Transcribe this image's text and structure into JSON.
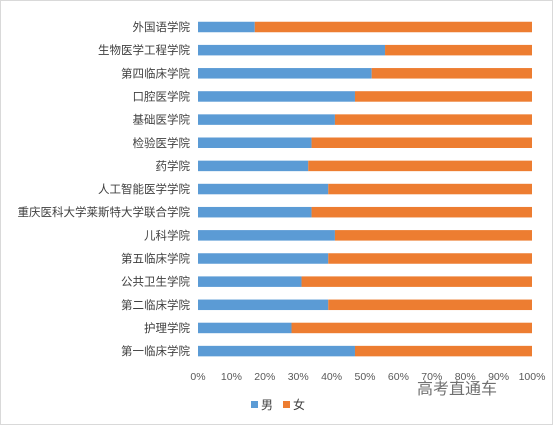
{
  "chart_data": {
    "type": "bar",
    "orientation": "horizontal",
    "stacked": "percent",
    "categories": [
      "外国语学院",
      "生物医学工程学院",
      "第四临床学院",
      "口腔医学院",
      "基础医学院",
      "检验医学院",
      "药学院",
      "人工智能医学学院",
      "重庆医科大学莱斯特大学联合学院",
      "儿科学院",
      "第五临床学院",
      "公共卫生学院",
      "第二临床学院",
      "护理学院",
      "第一临床学院"
    ],
    "series": [
      {
        "name": "男",
        "color": "#5b9bd5",
        "values": [
          0.17,
          0.56,
          0.52,
          0.47,
          0.41,
          0.34,
          0.33,
          0.39,
          0.34,
          0.41,
          0.39,
          0.31,
          0.39,
          0.28,
          0.47
        ]
      },
      {
        "name": "女",
        "color": "#ed7d31",
        "values": [
          0.83,
          0.44,
          0.48,
          0.53,
          0.59,
          0.66,
          0.67,
          0.61,
          0.66,
          0.59,
          0.61,
          0.69,
          0.61,
          0.72,
          0.53
        ]
      }
    ],
    "xlim": [
      0,
      1
    ],
    "x_ticks": [
      "0%",
      "10%",
      "20%",
      "30%",
      "40%",
      "50%",
      "60%",
      "70%",
      "80%",
      "90%",
      "100%"
    ],
    "grid": false,
    "legend": "bottom"
  },
  "watermark": "高考直通车"
}
